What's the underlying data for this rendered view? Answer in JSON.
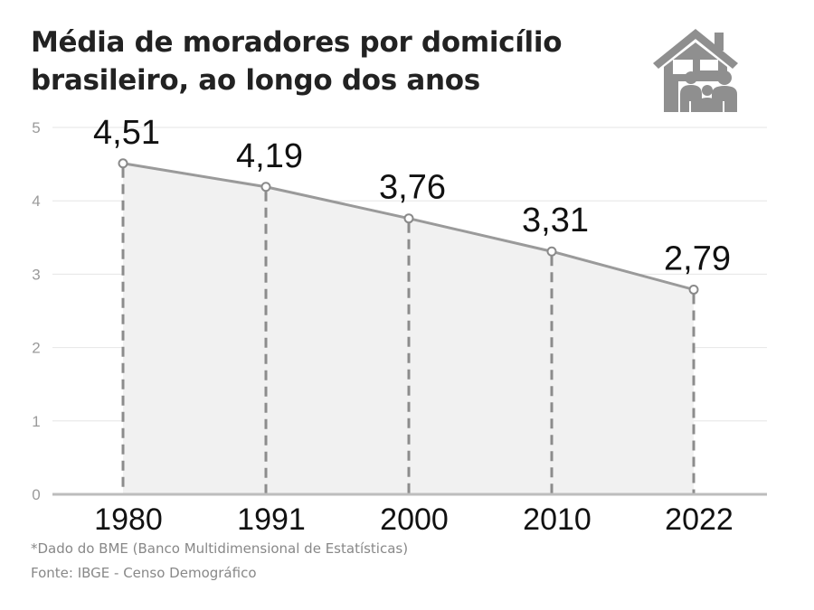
{
  "title_line1": "Média de moradores por domicílio",
  "title_line2": "brasileiro, ao longo dos anos",
  "icon": "house-family-icon",
  "footnote": "*Dado do BME (Banco Multidimensional de Estatísticas)",
  "source": "Fonte: IBGE - Censo Demográfico",
  "colors": {
    "line": "#9a9a9a",
    "area": "#f1f1f1",
    "grid": "#e6e6e6",
    "guide": "#8c8c8c",
    "text": "#111111"
  },
  "chart_data": {
    "type": "line",
    "categories": [
      "1980",
      "1991",
      "2000",
      "2010",
      "2022"
    ],
    "value_labels": [
      "4,51",
      "4,19",
      "3,76",
      "3,31",
      "2,79"
    ],
    "series": [
      {
        "values": [
          4.51,
          4.19,
          3.76,
          3.31,
          2.79
        ]
      }
    ],
    "yticks": [
      "0",
      "1",
      "2",
      "3",
      "4",
      "5"
    ],
    "ylim": [
      0,
      5
    ],
    "title": "Média de moradores por domicílio brasileiro, ao longo dos anos",
    "xlabel": "",
    "ylabel": "",
    "grid": true,
    "area_fill": true
  }
}
